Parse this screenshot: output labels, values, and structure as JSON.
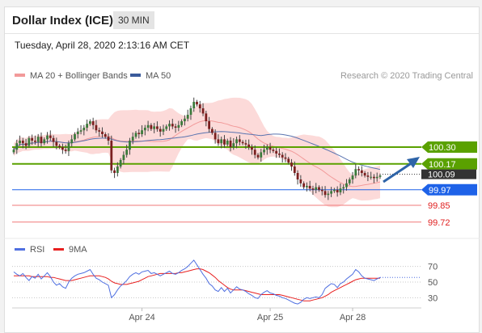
{
  "header": {
    "title": "Dollar Index (ICE)",
    "timeframe": "30 MIN"
  },
  "timestamp": "Tuesday, April 28, 2020 2:13:16 AM CET",
  "legend": {
    "items": [
      {
        "label": "MA 20 + Bollinger Bands",
        "color": "#f29a9a"
      },
      {
        "label": "MA 50",
        "color": "#3b5b9b"
      }
    ],
    "credit": "Research © 2020 Trading Central"
  },
  "chart_data": [
    {
      "type": "candlestick",
      "title": "Dollar Index (ICE) 30 MIN",
      "y_range": [
        99.65,
        100.75
      ],
      "x_ticks": [
        "Apr 24",
        "Apr 25",
        "Apr 28"
      ],
      "series": [
        {
          "name": "MA 20 + Bollinger Bands"
        },
        {
          "name": "MA 50"
        }
      ],
      "closes": [
        100.28,
        100.33,
        100.35,
        100.33,
        100.31,
        100.37,
        100.35,
        100.34,
        100.38,
        100.33,
        100.36,
        100.39,
        100.37,
        100.34,
        100.31,
        100.3,
        100.28,
        100.27,
        100.33,
        100.36,
        100.4,
        100.42,
        100.43,
        100.45,
        100.48,
        100.5,
        100.47,
        100.43,
        100.42,
        100.4,
        100.38,
        100.35,
        100.12,
        100.1,
        100.15,
        100.2,
        100.24,
        100.28,
        100.35,
        100.38,
        100.41,
        100.4,
        100.43,
        100.45,
        100.47,
        100.44,
        100.46,
        100.44,
        100.42,
        100.44,
        100.46,
        100.48,
        100.46,
        100.45,
        100.47,
        100.5,
        100.52,
        100.55,
        100.6,
        100.65,
        100.63,
        100.6,
        100.56,
        100.5,
        100.44,
        100.41,
        100.36,
        100.33,
        100.36,
        100.32,
        100.35,
        100.3,
        100.33,
        100.36,
        100.34,
        100.33,
        100.32,
        100.3,
        100.28,
        100.24,
        100.22,
        100.26,
        100.28,
        100.3,
        100.28,
        100.27,
        100.25,
        100.24,
        100.22,
        100.21,
        100.18,
        100.15,
        100.1,
        100.05,
        100.02,
        99.99,
        100.0,
        99.98,
        99.97,
        99.99,
        99.97,
        99.96,
        99.93,
        99.94,
        99.96,
        99.97,
        99.95,
        99.98,
        99.99,
        100.02,
        100.05,
        100.08,
        100.13,
        100.12,
        100.1,
        100.08,
        100.07,
        100.07,
        100.06,
        100.07,
        100.08
      ],
      "levels": [
        {
          "value": 100.3,
          "label": "100.30",
          "kind": "resistance",
          "color": "#5aa100"
        },
        {
          "value": 100.17,
          "label": "100.17",
          "kind": "resistance",
          "color": "#5aa100"
        },
        {
          "value": 100.09,
          "label": "100.09",
          "kind": "current",
          "color": "#333333"
        },
        {
          "value": 99.97,
          "label": "99.97",
          "kind": "pivot",
          "color": "#1e62e8"
        },
        {
          "value": 99.85,
          "label": "99.85",
          "kind": "support",
          "color": "#e02020"
        },
        {
          "value": 99.72,
          "label": "99.72",
          "kind": "support",
          "color": "#e02020"
        }
      ],
      "arrow": {
        "direction": "up",
        "target": 100.3,
        "color": "#2e64a8"
      }
    },
    {
      "type": "line",
      "title": "RSI",
      "y_range": [
        20,
        80
      ],
      "y_ticks": [
        70,
        50,
        30
      ],
      "series": [
        {
          "name": "RSI",
          "color": "#4f6fe0"
        },
        {
          "name": "9MA",
          "color": "#e82020"
        }
      ],
      "rsi": [
        63,
        60,
        58,
        61,
        56,
        52,
        57,
        55,
        60,
        54,
        58,
        62,
        57,
        50,
        46,
        48,
        44,
        42,
        50,
        55,
        58,
        60,
        61,
        62,
        64,
        66,
        60,
        55,
        53,
        50,
        48,
        46,
        30,
        34,
        40,
        45,
        48,
        52,
        57,
        60,
        62,
        60,
        63,
        64,
        65,
        61,
        62,
        60,
        58,
        60,
        62,
        64,
        61,
        60,
        62,
        65,
        67,
        70,
        74,
        78,
        72,
        66,
        60,
        55,
        48,
        45,
        40,
        38,
        43,
        38,
        42,
        36,
        40,
        44,
        41,
        40,
        38,
        35,
        33,
        30,
        29,
        34,
        37,
        39,
        36,
        35,
        33,
        32,
        30,
        29,
        27,
        25,
        23,
        22,
        24,
        28,
        30,
        29,
        30,
        31,
        30,
        34,
        42,
        45,
        48,
        47,
        43,
        48,
        50,
        54,
        57,
        60,
        66,
        63,
        58,
        55,
        54,
        53,
        52,
        54,
        56
      ],
      "ma": [
        58,
        58,
        58,
        58,
        58,
        58,
        57,
        57,
        57,
        57,
        57,
        57,
        56,
        56,
        55,
        54,
        53,
        52,
        52,
        52,
        53,
        54,
        55,
        56,
        57,
        58,
        58,
        58,
        58,
        57,
        56,
        54,
        51,
        49,
        48,
        47,
        47,
        47,
        48,
        49,
        50,
        51,
        53,
        55,
        57,
        58,
        59,
        60,
        61,
        61,
        61,
        61,
        61,
        61,
        62,
        62,
        63,
        64,
        65,
        66,
        67,
        67,
        66,
        64,
        62,
        59,
        56,
        52,
        49,
        46,
        43,
        41,
        40,
        40,
        40,
        40,
        39,
        38,
        37,
        36,
        35,
        34,
        34,
        34,
        34,
        34,
        34,
        34,
        33,
        32,
        31,
        30,
        29,
        28,
        27,
        26,
        26,
        26,
        27,
        28,
        29,
        30,
        32,
        34,
        37,
        39,
        41,
        43,
        45,
        47,
        49,
        51,
        53,
        54,
        55,
        55,
        55,
        55,
        55,
        55,
        55
      ]
    }
  ]
}
